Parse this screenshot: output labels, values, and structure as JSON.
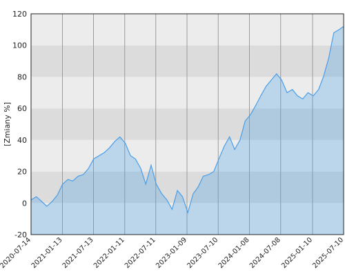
{
  "chart_data": {
    "type": "area",
    "ylabel": "[Zmiany %]",
    "x": [
      "2020-07-14",
      "2020-08-14",
      "2020-09-14",
      "2020-10-14",
      "2020-11-14",
      "2020-12-14",
      "2021-01-14",
      "2021-02-14",
      "2021-03-14",
      "2021-04-14",
      "2021-05-14",
      "2021-06-14",
      "2021-07-14",
      "2021-08-14",
      "2021-09-14",
      "2021-10-14",
      "2021-11-14",
      "2021-12-14",
      "2022-01-14",
      "2022-02-14",
      "2022-03-14",
      "2022-04-14",
      "2022-05-14",
      "2022-06-14",
      "2022-07-14",
      "2022-08-14",
      "2022-09-14",
      "2022-10-14",
      "2022-11-14",
      "2022-12-14",
      "2023-01-14",
      "2023-02-14",
      "2023-03-14",
      "2023-04-14",
      "2023-05-14",
      "2023-06-14",
      "2023-07-14",
      "2023-08-14",
      "2023-09-14",
      "2023-10-14",
      "2023-11-14",
      "2023-12-14",
      "2024-01-14",
      "2024-02-14",
      "2024-03-14",
      "2024-04-14",
      "2024-05-14",
      "2024-06-14",
      "2024-07-14",
      "2024-08-14",
      "2024-09-14",
      "2024-10-14",
      "2024-11-14",
      "2024-12-14",
      "2025-01-14",
      "2025-02-14",
      "2025-03-14",
      "2025-04-14",
      "2025-05-14",
      "2025-06-14",
      "2025-07-10"
    ],
    "series": [
      {
        "color": "#4a9ee8",
        "values": [
          2,
          4,
          1,
          -2,
          1,
          5,
          12,
          15,
          14,
          17,
          18,
          22,
          28,
          30,
          32,
          35,
          39,
          42,
          38,
          30,
          28,
          22,
          12,
          24,
          12,
          6,
          2,
          -4,
          8,
          4,
          -6,
          6,
          10,
          17,
          18,
          20,
          28,
          36,
          42,
          34,
          40,
          52,
          56,
          62,
          68,
          74,
          78,
          82,
          78,
          70,
          72,
          68,
          66,
          70,
          68,
          72,
          80,
          92,
          108,
          110,
          112
        ]
      }
    ],
    "xlim": [
      "2020-07-14",
      "2025-07-10"
    ],
    "xticks": [
      "2020-07-14",
      "2021-01-13",
      "2021-07-13",
      "2022-01-11",
      "2022-07-11",
      "2023-01-09",
      "2023-07-10",
      "2024-01-08",
      "2024-07-08",
      "2025-01-10",
      "2025-07-10"
    ],
    "ylim": [
      -20,
      120
    ],
    "yticks": [
      -20,
      0,
      20,
      40,
      60,
      80,
      100,
      120
    ],
    "grid": true
  }
}
